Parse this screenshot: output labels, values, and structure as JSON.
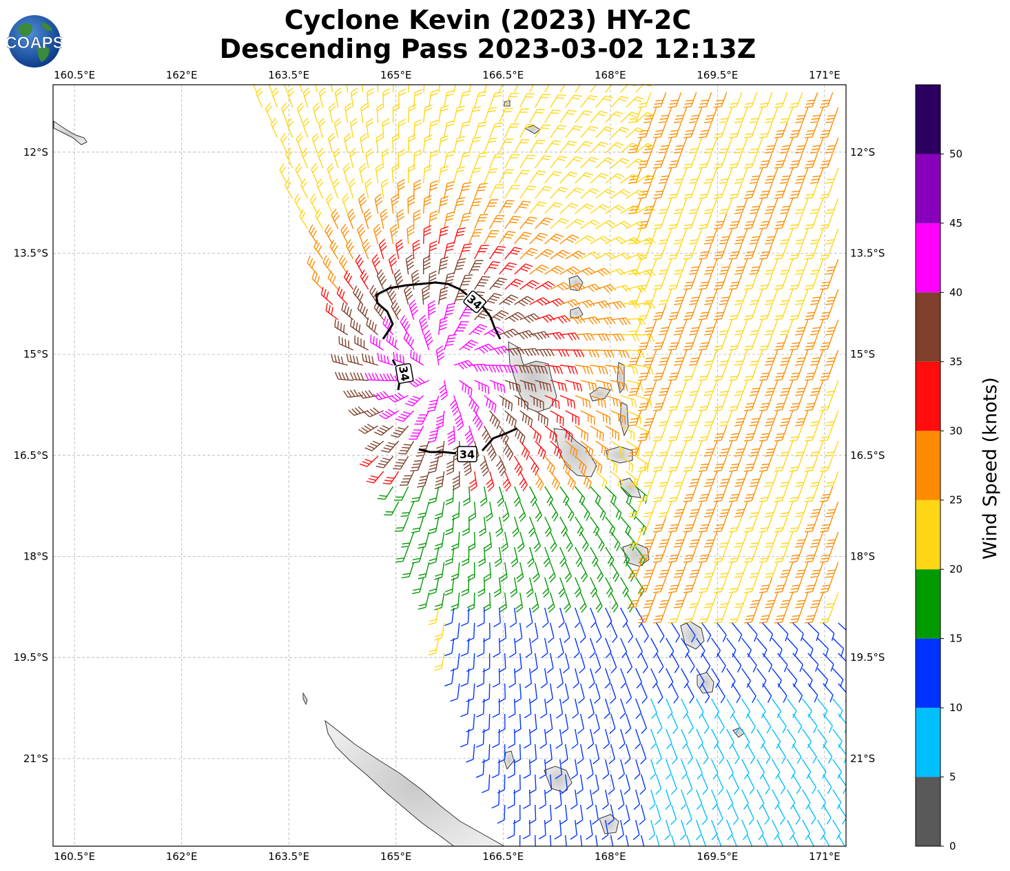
{
  "title_line1": "Cyclone Kevin (2023) HY-2C",
  "title_line2": "Descending Pass 2023-03-02 12:13Z",
  "logo_text": "COAPS",
  "map": {
    "lon_range": [
      160.2,
      171.3
    ],
    "lat_range": [
      -22.3,
      -11.0
    ],
    "lon_ticks": [
      "160.5°E",
      "162°E",
      "163.5°E",
      "165°E",
      "166.5°E",
      "168°E",
      "169.5°E",
      "171°E"
    ],
    "lon_values": [
      160.5,
      162,
      163.5,
      165,
      166.5,
      168,
      169.5,
      171
    ],
    "lat_ticks": [
      "12°S",
      "13.5°S",
      "15°S",
      "16.5°S",
      "18°S",
      "19.5°S",
      "21°S"
    ],
    "lat_values": [
      -12,
      -13.5,
      -15,
      -16.5,
      -18,
      -19.5,
      -21
    ],
    "contour_label": "34",
    "contour_value_knots": 34
  },
  "colorbar": {
    "label": "Wind Speed (knots)",
    "ticks": [
      "0",
      "5",
      "10",
      "15",
      "20",
      "25",
      "30",
      "35",
      "40",
      "45",
      "50"
    ],
    "bins": [
      {
        "from": 0,
        "to": 5,
        "color": "#595959"
      },
      {
        "from": 5,
        "to": 10,
        "color": "#00bfff"
      },
      {
        "from": 10,
        "to": 15,
        "color": "#0033ff"
      },
      {
        "from": 15,
        "to": 20,
        "color": "#009900"
      },
      {
        "from": 20,
        "to": 25,
        "color": "#ffd614"
      },
      {
        "from": 25,
        "to": 30,
        "color": "#ff8c00"
      },
      {
        "from": 30,
        "to": 35,
        "color": "#ff0d0d"
      },
      {
        "from": 35,
        "to": 40,
        "color": "#7f3f2a"
      },
      {
        "from": 40,
        "to": 45,
        "color": "#ff00ff"
      },
      {
        "from": 45,
        "to": 50,
        "color": "#8800bb"
      },
      {
        "from": 50,
        "to": 55,
        "color": "#2b0060"
      }
    ]
  }
}
